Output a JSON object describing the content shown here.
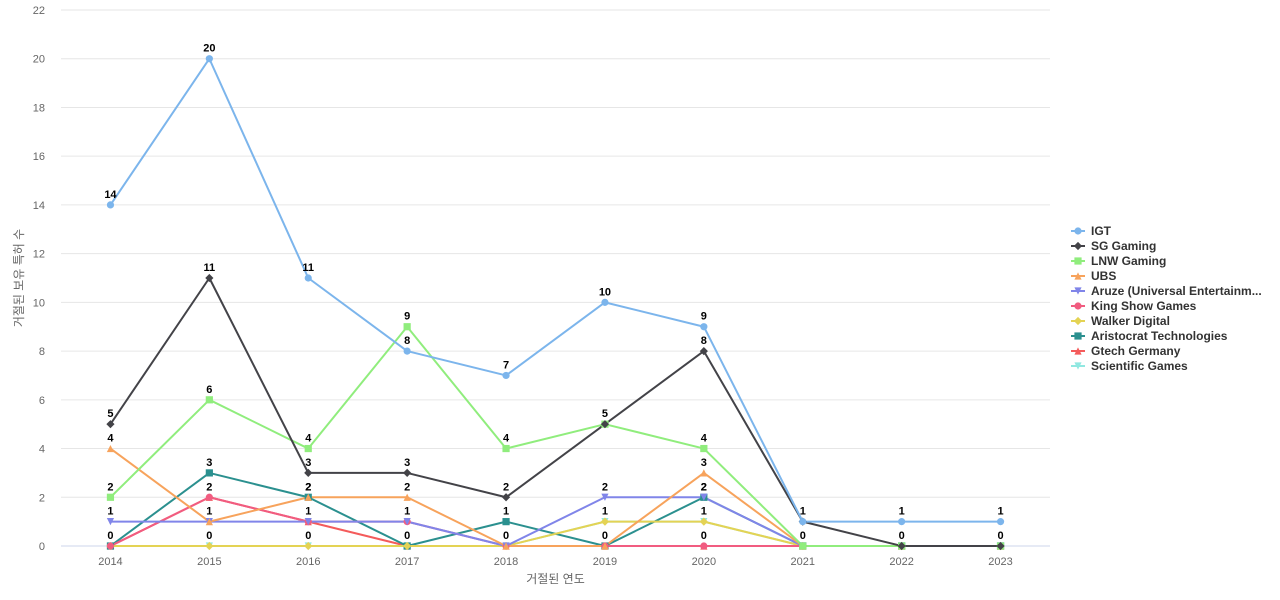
{
  "chart_data": {
    "type": "line",
    "xlabel": "거절된 연도",
    "ylabel": "거절된 보유 특허 수",
    "ylim": [
      0,
      22
    ],
    "yticks": [
      0,
      2,
      4,
      6,
      8,
      10,
      12,
      14,
      16,
      18,
      20,
      22
    ],
    "grid": true,
    "legend_position": "right",
    "categories": [
      "2014",
      "2015",
      "2016",
      "2017",
      "2018",
      "2019",
      "2020",
      "2021",
      "2022",
      "2023"
    ],
    "series": [
      {
        "name": "IGT",
        "color": "#7cb5ec",
        "marker": "circle",
        "values": [
          14,
          20,
          11,
          8,
          7,
          10,
          9,
          1,
          1,
          1
        ],
        "labels": [
          14,
          20,
          11,
          8,
          7,
          10,
          9,
          1,
          1,
          1
        ]
      },
      {
        "name": "SG Gaming",
        "color": "#434348",
        "marker": "diamond",
        "values": [
          5,
          11,
          3,
          3,
          2,
          5,
          8,
          1,
          0,
          0
        ],
        "labels": [
          5,
          11,
          3,
          3,
          2,
          null,
          8,
          null,
          0,
          0
        ]
      },
      {
        "name": "LNW Gaming",
        "color": "#90ed7d",
        "marker": "square",
        "values": [
          2,
          6,
          4,
          9,
          4,
          5,
          4,
          0,
          0,
          0
        ],
        "labels": [
          2,
          6,
          4,
          9,
          4,
          5,
          4,
          null,
          null,
          null
        ]
      },
      {
        "name": "UBS",
        "color": "#f7a35c",
        "marker": "triangle",
        "values": [
          4,
          1,
          2,
          2,
          0,
          0,
          3,
          0,
          0,
          0
        ],
        "labels": [
          4,
          null,
          2,
          2,
          null,
          null,
          3,
          null,
          null,
          null
        ]
      },
      {
        "name": "Aruze (Universal Entertainm...",
        "color": "#8085e9",
        "marker": "triangle-down",
        "values": [
          1,
          1,
          1,
          1,
          0,
          2,
          2,
          0,
          0,
          0
        ],
        "labels": [
          1,
          1,
          null,
          null,
          null,
          2,
          2,
          null,
          null,
          null
        ]
      },
      {
        "name": "King Show Games",
        "color": "#f15c80",
        "marker": "circle",
        "values": [
          0,
          2,
          1,
          1,
          0,
          0,
          0,
          0,
          0,
          0
        ],
        "labels": [
          null,
          2,
          1,
          1,
          null,
          null,
          null,
          null,
          null,
          null
        ]
      },
      {
        "name": "Walker Digital",
        "color": "#e4d354",
        "marker": "diamond",
        "values": [
          0,
          0,
          0,
          0,
          0,
          1,
          1,
          0,
          0,
          0
        ],
        "labels": [
          null,
          null,
          null,
          null,
          null,
          1,
          1,
          null,
          null,
          null
        ]
      },
      {
        "name": "Aristocrat Technologies",
        "color": "#2b908f",
        "marker": "square",
        "values": [
          0,
          3,
          2,
          0,
          1,
          0,
          2,
          0,
          0,
          0
        ],
        "labels": [
          0,
          3,
          2,
          0,
          1,
          0,
          2,
          0,
          null,
          null
        ]
      },
      {
        "name": "Gtech Germany",
        "color": "#f45b5b",
        "marker": "triangle",
        "values": [
          0,
          2,
          1,
          0,
          0,
          0,
          0,
          0,
          0,
          0
        ],
        "labels": [
          null,
          null,
          null,
          null,
          null,
          null,
          0,
          null,
          null,
          null
        ]
      },
      {
        "name": "Scientific Games",
        "color": "#91e8e1",
        "marker": "triangle-down",
        "values": [
          0,
          0,
          0,
          0,
          0,
          1,
          1,
          0,
          0,
          0
        ],
        "labels": [
          null,
          0,
          0,
          null,
          0,
          null,
          null,
          null,
          null,
          null
        ]
      }
    ]
  }
}
